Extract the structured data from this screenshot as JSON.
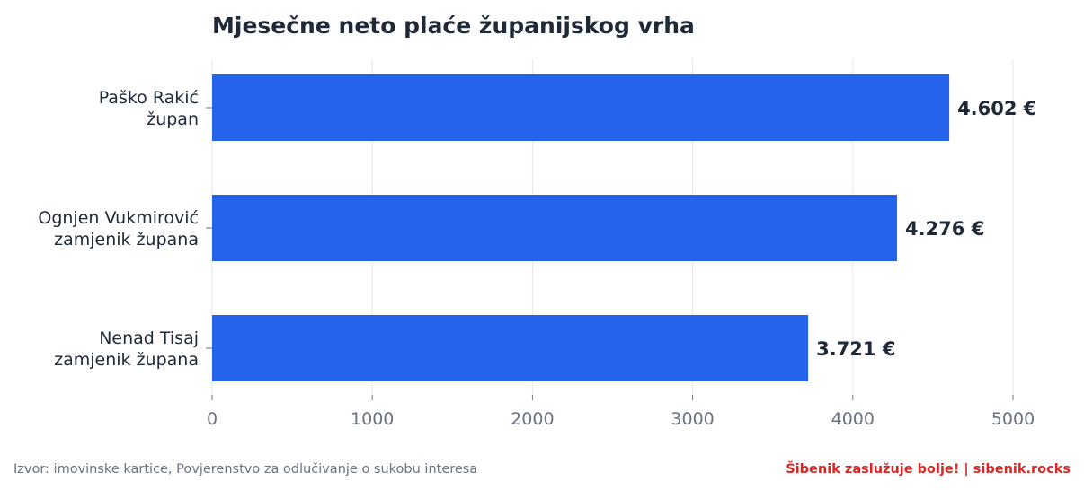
{
  "chart_data": {
    "type": "bar",
    "orientation": "horizontal",
    "title": "Mjesečne neto plaće županijskog vrha",
    "categories": [
      [
        "Paško Rakić",
        "župan"
      ],
      [
        "Ognjen Vukmirović",
        "zamjenik župana"
      ],
      [
        "Nenad Tisaj",
        "zamjenik župana"
      ]
    ],
    "values": [
      4602,
      4276,
      3721
    ],
    "value_labels": [
      "4.602 €",
      "4.276 €",
      "3.721 €"
    ],
    "xlim": [
      0,
      5000
    ],
    "xticks": [
      0,
      1000,
      2000,
      3000,
      4000,
      5000
    ],
    "xtick_labels": [
      "0",
      "1000",
      "2000",
      "3000",
      "4000",
      "5000"
    ],
    "grid": "vertical",
    "bar_color": "#2563eb"
  },
  "footer": {
    "source": "Izvor: imovinske kartice, Povjerenstvo za odlučivanje o sukobu interesa",
    "brand": "Šibenik zaslužuje bolje!  |  sibenik.rocks",
    "brand_color": "#dc2626"
  }
}
